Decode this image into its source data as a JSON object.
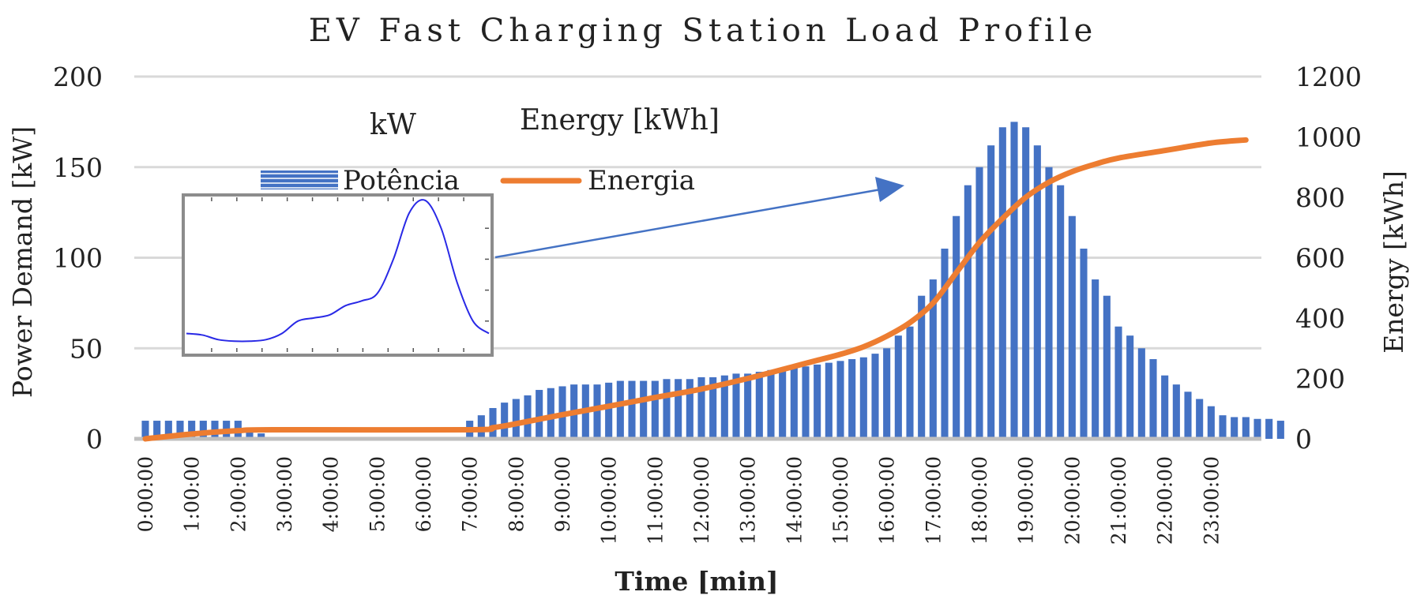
{
  "chart_data": {
    "type": "bar+line",
    "title": "EV Fast Charging Station Load Profile",
    "xlabel": "Time [min]",
    "ylabel_left": "Power Demand [kW]",
    "ylabel_right": "Energy [kWh]",
    "ylim_left": [
      0,
      200
    ],
    "ylim_right": [
      0,
      1200
    ],
    "left_ticks": [
      "0",
      "50",
      "100",
      "150",
      "200"
    ],
    "right_ticks": [
      "0",
      "200",
      "400",
      "600",
      "800",
      "1000",
      "1200"
    ],
    "x_ticks": [
      "0:00:00",
      "1:00:00",
      "2:00:00",
      "3:00:00",
      "4:00:00",
      "5:00:00",
      "6:00:00",
      "7:00:00",
      "8:00:00",
      "9:00:00",
      "10:00:00",
      "11:00:00",
      "12:00:00",
      "13:00:00",
      "14:00:00",
      "15:00:00",
      "16:00:00",
      "17:00:00",
      "18:00:00",
      "19:00:00",
      "20:00:00",
      "21:00:00",
      "22:00:00",
      "23:00:00"
    ],
    "annotations": {
      "kw_label": "kW",
      "energy_label": "Energy [kWh]"
    },
    "series": [
      {
        "name": "Potência",
        "axis": "left",
        "kind": "bar",
        "color": "#4472C4",
        "interval_hours": 0.25,
        "values": [
          10,
          10,
          10,
          10,
          10,
          10,
          10,
          10,
          10,
          6,
          3,
          1,
          0,
          0,
          0,
          0,
          0,
          0,
          0,
          0,
          0,
          0,
          0,
          0,
          0,
          0,
          0,
          0,
          10,
          13,
          17,
          20,
          22,
          24,
          27,
          28,
          29,
          30,
          30,
          30,
          31,
          32,
          32,
          32,
          32,
          33,
          33,
          33,
          34,
          34,
          35,
          36,
          36,
          37,
          38,
          38,
          40,
          40,
          41,
          42,
          43,
          44,
          45,
          47,
          50,
          57,
          62,
          79,
          88,
          105,
          123,
          140,
          150,
          162,
          172,
          175,
          172,
          162,
          150,
          140,
          123,
          105,
          88,
          79,
          62,
          57,
          50,
          44,
          35,
          30,
          26,
          22,
          18,
          13,
          12,
          12,
          11,
          11,
          10
        ]
      },
      {
        "name": "Energia",
        "axis": "right",
        "kind": "line",
        "color": "#ED7D31",
        "x_hours": [
          0,
          1,
          2,
          2.75,
          7,
          7.5,
          8,
          9,
          10,
          11,
          12,
          13,
          14,
          14.5,
          15,
          15.5,
          16,
          16.5,
          17,
          17.5,
          18,
          18.5,
          19,
          19.5,
          20,
          20.5,
          21,
          22,
          23,
          23.75
        ],
        "values": [
          0,
          16,
          27,
          30,
          30,
          37,
          50,
          80,
          108,
          137,
          165,
          200,
          240,
          260,
          280,
          305,
          340,
          385,
          450,
          550,
          650,
          730,
          800,
          850,
          885,
          910,
          930,
          955,
          980,
          990
        ]
      }
    ],
    "inset": {
      "description_series": "kW",
      "color": "#2929E6",
      "values": [
        0.12,
        0.11,
        0.08,
        0.07,
        0.07,
        0.08,
        0.12,
        0.2,
        0.22,
        0.24,
        0.3,
        0.33,
        0.38,
        0.6,
        0.9,
        0.98,
        0.8,
        0.45,
        0.2,
        0.12
      ]
    }
  },
  "colors": {
    "bar": "#4472C4",
    "line": "#ED7D31",
    "arrow": "#4472C4",
    "grid": "#D9D9D9",
    "inset_frame": "#8C8C8C"
  }
}
